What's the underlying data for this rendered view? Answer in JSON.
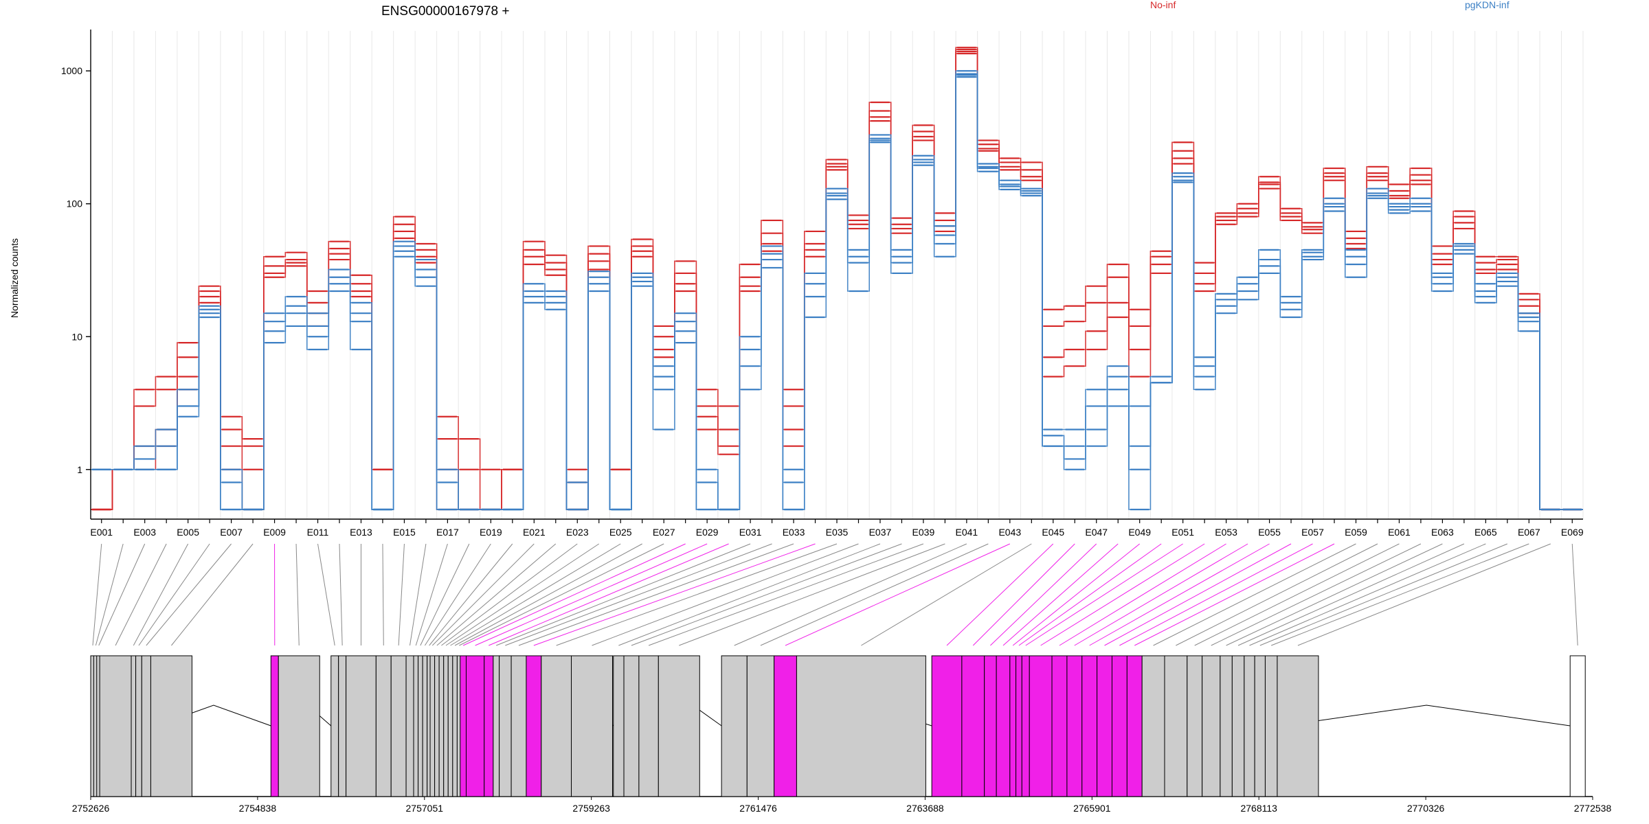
{
  "chart_data": {
    "type": "line",
    "title": "ENSG00000167978 +",
    "ylabel": "Normalized counts",
    "yscale": "log",
    "ylim": [
      0.5,
      2000
    ],
    "yticks": [
      1,
      10,
      100,
      1000
    ],
    "ytick_labels": [
      "1",
      "10",
      "100",
      "1000"
    ],
    "grid": "vertical lines at each exon",
    "legend": [
      {
        "label": "No-inf",
        "color": "#d62728",
        "position": "top-center"
      },
      {
        "label": "pgKDN-inf",
        "color": "#3b7fc4",
        "position": "top-right"
      }
    ],
    "exons": [
      "E001",
      "E002",
      "E003",
      "E004",
      "E005",
      "E006",
      "E007",
      "E008",
      "E009",
      "E010",
      "E011",
      "E012",
      "E013",
      "E014",
      "E015",
      "E016",
      "E017",
      "E018",
      "E019",
      "E020",
      "E021",
      "E022",
      "E023",
      "E024",
      "E025",
      "E026",
      "E027",
      "E028",
      "E029",
      "E030",
      "E031",
      "E032",
      "E033",
      "E034",
      "E035",
      "E036",
      "E037",
      "E038",
      "E039",
      "E040",
      "E041",
      "E042",
      "E043",
      "E044",
      "E045",
      "E046",
      "E047",
      "E048",
      "E049",
      "E050",
      "E051",
      "E052",
      "E053",
      "E054",
      "E055",
      "E056",
      "E057",
      "E058",
      "E059",
      "E060",
      "E061",
      "E062",
      "E063",
      "E064",
      "E065",
      "E066",
      "E067",
      "E068",
      "E069"
    ],
    "exon_tick_labels": [
      "E001",
      "E003",
      "E005",
      "E007",
      "E009",
      "E011",
      "E013",
      "E015",
      "E017",
      "E019",
      "E021",
      "E023",
      "E025",
      "E027",
      "E029",
      "E031",
      "E033",
      "E035",
      "E037",
      "E039",
      "E041",
      "E043",
      "E045",
      "E047",
      "E049",
      "E051",
      "E053",
      "E055",
      "E057",
      "E059",
      "E061",
      "E063",
      "E065",
      "E067",
      "E069"
    ],
    "series": [
      {
        "name": "No-inf",
        "color": "#d62728",
        "values": [
          0.5,
          1,
          4,
          5,
          9,
          24,
          2.5,
          1.7,
          40,
          43,
          22,
          52,
          29,
          1,
          80,
          50,
          2.5,
          1.7,
          1,
          1,
          52,
          41,
          1,
          48,
          1,
          54,
          12,
          37,
          4,
          3,
          35,
          75,
          4,
          62,
          215,
          82,
          580,
          78,
          390,
          85,
          1500,
          300,
          220,
          205,
          16,
          17,
          24,
          35,
          16,
          44,
          290,
          36,
          85,
          100,
          160,
          92,
          72,
          185,
          62,
          190,
          140,
          185,
          48,
          88,
          40,
          40,
          21,
          0.5,
          0.5
        ]
      },
      {
        "name": "No-inf",
        "color": "#d62728",
        "values": [
          0.5,
          1,
          3,
          4,
          7,
          22,
          2,
          1.5,
          34,
          38,
          18,
          46,
          25,
          1,
          70,
          45,
          1.7,
          1,
          0.5,
          1,
          45,
          36,
          0.8,
          42,
          1,
          48,
          10,
          30,
          3,
          2,
          28,
          60,
          3,
          50,
          200,
          75,
          500,
          70,
          350,
          75,
          1450,
          280,
          205,
          180,
          12,
          13,
          18,
          28,
          12,
          40,
          250,
          30,
          80,
          92,
          145,
          85,
          67,
          170,
          55,
          170,
          125,
          165,
          42,
          80,
          36,
          38,
          19,
          0.5,
          0.5
        ]
      },
      {
        "name": "No-inf",
        "color": "#d62728",
        "values": [
          0.5,
          1,
          1.5,
          2,
          5,
          20,
          1.5,
          1,
          30,
          36,
          15,
          42,
          22,
          1,
          62,
          40,
          1,
          0.5,
          0.5,
          1,
          40,
          32,
          0.5,
          37,
          1,
          44,
          8,
          25,
          2.5,
          1.5,
          24,
          50,
          2,
          45,
          190,
          70,
          450,
          65,
          320,
          68,
          1400,
          260,
          190,
          160,
          7,
          8,
          11,
          18,
          8,
          35,
          220,
          25,
          75,
          85,
          140,
          80,
          64,
          160,
          50,
          160,
          115,
          150,
          38,
          72,
          32,
          35,
          17,
          0.5,
          0.5
        ]
      },
      {
        "name": "No-inf",
        "color": "#d62728",
        "values": [
          0.5,
          1,
          1,
          1.5,
          4,
          18,
          1,
          0.5,
          28,
          34,
          12,
          38,
          20,
          1,
          55,
          36,
          0.5,
          0.5,
          0.5,
          1,
          35,
          29,
          0.5,
          32,
          1,
          40,
          7,
          22,
          2,
          1.3,
          22,
          44,
          1.5,
          40,
          180,
          65,
          420,
          60,
          300,
          62,
          1350,
          250,
          180,
          150,
          5,
          6,
          8,
          14,
          5,
          30,
          200,
          22,
          70,
          80,
          130,
          75,
          60,
          150,
          46,
          150,
          110,
          140,
          35,
          65,
          30,
          32,
          15,
          0.5,
          0.5
        ]
      },
      {
        "name": "pgKDN-inf",
        "color": "#3b7fc4",
        "values": [
          1,
          1,
          1.5,
          2,
          3,
          17,
          1,
          0.5,
          15,
          20,
          15,
          32,
          18,
          0.5,
          52,
          38,
          1,
          0.5,
          0.5,
          0.5,
          25,
          22,
          0.8,
          31,
          0.5,
          30,
          6,
          15,
          1,
          0.5,
          10,
          48,
          1,
          30,
          130,
          45,
          330,
          45,
          230,
          68,
          1000,
          200,
          150,
          130,
          2,
          2,
          4,
          6,
          3,
          5,
          170,
          7,
          21,
          28,
          45,
          20,
          45,
          110,
          45,
          130,
          100,
          110,
          30,
          50,
          25,
          30,
          15,
          0.5,
          0.5
        ]
      },
      {
        "name": "pgKDN-inf",
        "color": "#3b7fc4",
        "values": [
          1,
          1,
          1.2,
          1.5,
          2.5,
          16,
          0.8,
          0.5,
          13,
          17,
          12,
          28,
          15,
          0.5,
          48,
          32,
          0.8,
          0.5,
          0.5,
          0.5,
          22,
          20,
          0.5,
          28,
          0.5,
          28,
          5,
          13,
          0.8,
          0.5,
          8,
          42,
          0.8,
          25,
          120,
          40,
          310,
          40,
          215,
          58,
          950,
          190,
          140,
          125,
          1.8,
          1.5,
          3,
          5,
          1.5,
          4.5,
          160,
          6,
          19,
          25,
          38,
          18,
          43,
          100,
          40,
          120,
          95,
          100,
          28,
          48,
          22,
          28,
          14,
          0.5,
          0.5
        ]
      },
      {
        "name": "pgKDN-inf",
        "color": "#3b7fc4",
        "values": [
          1,
          1,
          1,
          1,
          4,
          15,
          0.5,
          0.5,
          11,
          15,
          10,
          25,
          13,
          0.5,
          44,
          28,
          0.5,
          0.5,
          0.5,
          0.5,
          20,
          18,
          0.5,
          25,
          0.5,
          26,
          4,
          11,
          0.5,
          0.5,
          6,
          38,
          0.5,
          20,
          115,
          36,
          300,
          36,
          205,
          50,
          930,
          185,
          135,
          120,
          1.5,
          1.2,
          2,
          4,
          1,
          4.5,
          150,
          5,
          17,
          22,
          34,
          16,
          40,
          95,
          35,
          115,
          90,
          95,
          25,
          45,
          20,
          26,
          13,
          0.5,
          0.5
        ]
      },
      {
        "name": "pgKDN-inf",
        "color": "#3b7fc4",
        "values": [
          1,
          1,
          1,
          1,
          3,
          14,
          0.5,
          0.5,
          9,
          12,
          8,
          22,
          8,
          0.5,
          40,
          24,
          0.5,
          0.5,
          0.5,
          0.5,
          18,
          16,
          0.5,
          22,
          0.5,
          24,
          2,
          9,
          0.5,
          0.5,
          4,
          33,
          0.5,
          14,
          108,
          22,
          290,
          30,
          195,
          40,
          900,
          175,
          128,
          115,
          1.5,
          1,
          1.5,
          3,
          0.5,
          4.5,
          145,
          4,
          15,
          19,
          30,
          14,
          38,
          88,
          28,
          110,
          85,
          88,
          22,
          42,
          18,
          24,
          11,
          0.5,
          0.5
        ]
      }
    ],
    "gene_model": {
      "genomic_ticks": [
        "2752626",
        "2754838",
        "2757051",
        "2759263",
        "2761476",
        "2763688",
        "2765901",
        "2768113",
        "2770326",
        "2772538"
      ],
      "highlight_color": "#f020e8",
      "base_color": "#cccccc",
      "highlighted_exons": [
        "E009",
        "E028",
        "E029",
        "E030",
        "E034",
        "E043",
        "E045",
        "E046",
        "E047",
        "E048",
        "E049",
        "E050",
        "E051",
        "E052",
        "E053",
        "E054",
        "E055",
        "E056",
        "E057",
        "E058"
      ]
    }
  }
}
